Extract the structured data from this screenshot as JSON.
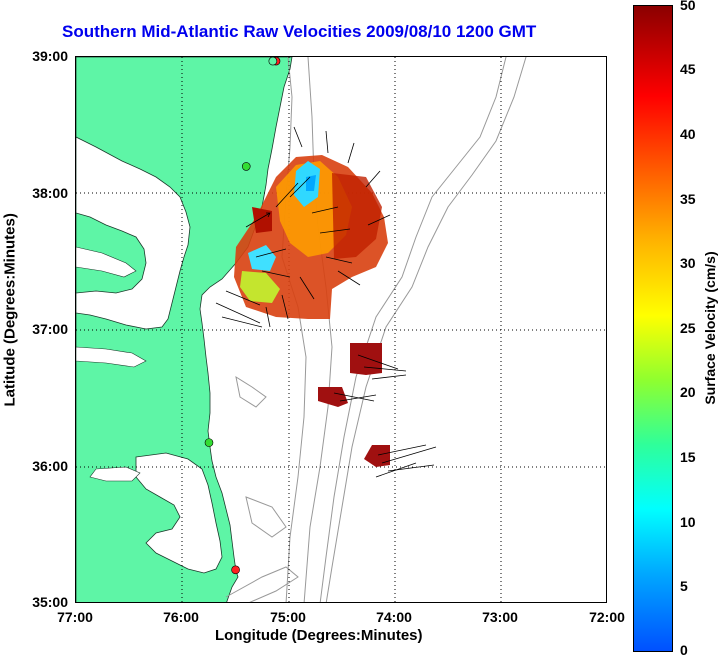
{
  "title": "Southern Mid-Atlantic Raw Velocities 2009/08/10 1200 GMT",
  "axes": {
    "xlabel": "Longitude (Degrees:Minutes)",
    "ylabel": "Latitude (Degrees:Minutes)",
    "xticks": [
      "77:00",
      "76:00",
      "75:00",
      "74:00",
      "73:00",
      "72:00"
    ],
    "yticks": [
      "39:00",
      "38:00",
      "37:00",
      "36:00",
      "35:00"
    ],
    "xlim": [
      -77,
      -72
    ],
    "ylim": [
      35,
      39
    ]
  },
  "colorbar": {
    "label": "Surface Velocity (cm/s)",
    "ticks": [
      "50",
      "45",
      "40",
      "35",
      "30",
      "25",
      "20",
      "15",
      "10",
      "5",
      "0"
    ],
    "range": [
      0,
      50
    ]
  },
  "colors": {
    "land": "#5ef5a6",
    "title": "#0000ee",
    "isobath": "#999999",
    "station": "#ff2020"
  },
  "stations": [
    {
      "lon": -75.12,
      "lat": 38.97,
      "color": "#ff2020"
    },
    {
      "lon": -75.15,
      "lat": 38.97,
      "color": "#5ef5a6"
    },
    {
      "lon": -75.4,
      "lat": 38.2,
      "color": "#33dd33"
    },
    {
      "lon": -75.75,
      "lat": 36.18,
      "color": "#33dd33"
    },
    {
      "lon": -75.5,
      "lat": 35.25,
      "color": "#ff2020"
    }
  ]
}
